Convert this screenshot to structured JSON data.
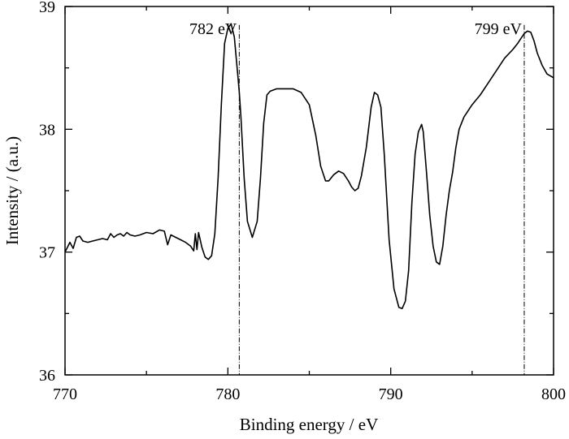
{
  "chart_data": {
    "type": "line",
    "title": "",
    "xlabel": "Binding energy / eV",
    "ylabel": "Intensity / (a.u.)",
    "xlim": [
      770,
      800
    ],
    "ylim": [
      36,
      39
    ],
    "xticks": [
      770,
      780,
      790,
      800
    ],
    "xtick_labels": [
      "770",
      "780",
      "790",
      "800"
    ],
    "yticks": [
      36,
      37,
      38,
      39
    ],
    "ytick_labels": [
      "36",
      "37",
      "38",
      "39"
    ],
    "grid": false,
    "legend": "none",
    "line_color": "#000000",
    "series": [
      {
        "x": [
          770.0,
          770.3,
          770.5,
          770.7,
          770.9,
          771.1,
          771.4,
          771.7,
          772.0,
          772.3,
          772.6,
          772.8,
          773.0,
          773.2,
          773.4,
          773.6,
          773.8,
          774.0,
          774.3,
          774.6,
          775.0,
          775.4,
          775.8,
          776.1,
          776.3,
          776.5,
          776.8,
          777.1,
          777.4,
          777.7,
          777.9,
          778.0,
          778.1,
          778.2,
          778.4,
          778.6,
          778.8,
          779.0,
          779.2,
          779.4,
          779.6,
          779.8,
          780.0,
          780.2,
          780.4,
          780.6,
          780.7,
          780.8,
          781.0,
          781.2,
          781.5,
          781.8,
          782.0,
          782.2,
          782.4,
          782.6,
          782.8,
          783.0,
          783.2,
          783.4,
          784.0,
          784.5,
          785.0,
          785.4,
          785.7,
          786.0,
          786.2,
          786.5,
          786.8,
          787.1,
          787.4,
          787.6,
          787.8,
          788.0,
          788.2,
          788.5,
          788.8,
          789.0,
          789.2,
          789.4,
          789.6,
          789.9,
          790.2,
          790.5,
          790.7,
          790.9,
          791.1,
          791.3,
          791.5,
          791.7,
          791.9,
          792.0,
          792.2,
          792.4,
          792.6,
          792.8,
          793.0,
          793.2,
          793.4,
          793.6,
          793.8,
          794.0,
          794.2,
          794.5,
          795.0,
          795.5,
          796.0,
          796.5,
          797.0,
          797.5,
          797.8,
          798.0,
          798.2,
          798.4,
          798.6,
          798.8,
          799.0,
          799.3,
          799.6,
          800.0
        ],
        "y": [
          37.0,
          37.08,
          37.03,
          37.12,
          37.13,
          37.09,
          37.08,
          37.09,
          37.1,
          37.11,
          37.1,
          37.15,
          37.12,
          37.14,
          37.15,
          37.13,
          37.16,
          37.14,
          37.13,
          37.14,
          37.16,
          37.15,
          37.18,
          37.17,
          37.06,
          37.14,
          37.12,
          37.1,
          37.08,
          37.05,
          37.01,
          37.15,
          37.02,
          37.16,
          37.04,
          36.96,
          36.94,
          36.97,
          37.15,
          37.6,
          38.2,
          38.7,
          38.82,
          38.86,
          38.75,
          38.45,
          38.3,
          38.1,
          37.6,
          37.25,
          37.12,
          37.25,
          37.6,
          38.05,
          38.28,
          38.31,
          38.32,
          38.33,
          38.33,
          38.33,
          38.33,
          38.3,
          38.2,
          37.95,
          37.7,
          37.58,
          37.58,
          37.63,
          37.66,
          37.64,
          37.58,
          37.53,
          37.5,
          37.52,
          37.62,
          37.85,
          38.18,
          38.3,
          38.28,
          38.18,
          37.8,
          37.1,
          36.7,
          36.55,
          36.54,
          36.6,
          36.85,
          37.4,
          37.8,
          37.98,
          38.04,
          37.98,
          37.65,
          37.3,
          37.05,
          36.92,
          36.9,
          37.05,
          37.3,
          37.5,
          37.65,
          37.85,
          38.0,
          38.1,
          38.2,
          38.28,
          38.38,
          38.48,
          38.58,
          38.65,
          38.7,
          38.74,
          38.78,
          38.8,
          38.79,
          38.72,
          38.62,
          38.52,
          38.45,
          38.42
        ]
      }
    ],
    "annotations": [
      {
        "label": "782 eV",
        "x": 780.7
      },
      {
        "label": "799 eV",
        "x": 798.2
      }
    ]
  }
}
